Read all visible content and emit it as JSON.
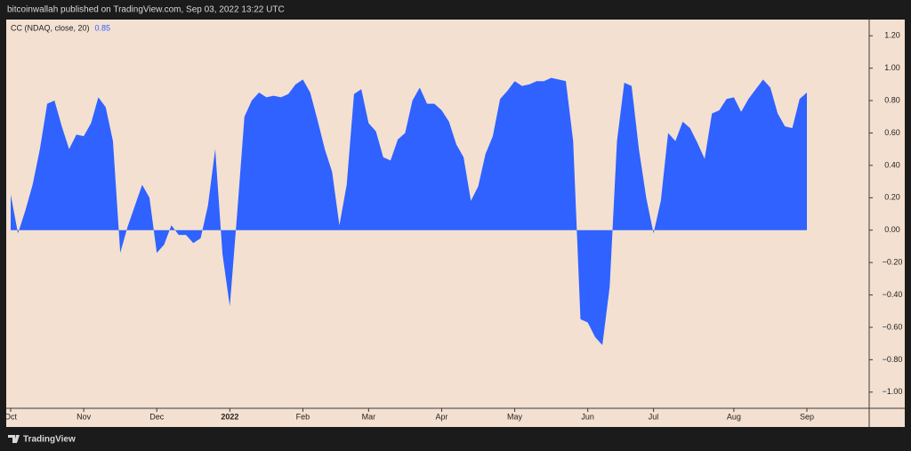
{
  "header": {
    "text": "bitcoinwallah published on TradingView.com, Sep 03, 2022 13:22 UTC"
  },
  "footer": {
    "brand": "TradingView"
  },
  "chart_data": {
    "type": "area",
    "series": [
      {
        "name": "CC (NDAQ, close, 20)",
        "color": "#2f62ff",
        "values": [
          0.22,
          -0.02,
          0.12,
          0.28,
          0.5,
          0.78,
          0.8,
          0.64,
          0.5,
          0.59,
          0.58,
          0.66,
          0.82,
          0.76,
          0.55,
          -0.14,
          0.02,
          0.15,
          0.28,
          0.2,
          -0.14,
          -0.09,
          0.03,
          -0.03,
          -0.03,
          -0.08,
          -0.05,
          0.15,
          0.5,
          -0.15,
          -0.47,
          0.1,
          0.7,
          0.8,
          0.85,
          0.82,
          0.83,
          0.82,
          0.84,
          0.9,
          0.93,
          0.85,
          0.68,
          0.5,
          0.36,
          0.03,
          0.28,
          0.84,
          0.87,
          0.66,
          0.61,
          0.45,
          0.43,
          0.56,
          0.6,
          0.8,
          0.88,
          0.78,
          0.78,
          0.74,
          0.67,
          0.53,
          0.45,
          0.18,
          0.27,
          0.47,
          0.58,
          0.81,
          0.86,
          0.92,
          0.89,
          0.9,
          0.92,
          0.92,
          0.94,
          0.93,
          0.92,
          0.55,
          -0.55,
          -0.57,
          -0.66,
          -0.71,
          -0.35,
          0.55,
          0.91,
          0.89,
          0.5,
          0.2,
          -0.02,
          0.18,
          0.6,
          0.55,
          0.67,
          0.63,
          0.54,
          0.44,
          0.72,
          0.74,
          0.81,
          0.82,
          0.73,
          0.81,
          0.87,
          0.93,
          0.88,
          0.72,
          0.64,
          0.63,
          0.81,
          0.85
        ]
      }
    ],
    "last_value": 0.85,
    "categories": [
      "Oct",
      null,
      null,
      null,
      null,
      null,
      null,
      null,
      null,
      null,
      "Nov",
      null,
      null,
      null,
      null,
      null,
      null,
      null,
      null,
      null,
      "Dec",
      null,
      null,
      null,
      null,
      null,
      null,
      null,
      null,
      null,
      "2022",
      null,
      null,
      null,
      null,
      null,
      null,
      null,
      null,
      null,
      "Feb",
      null,
      null,
      null,
      null,
      null,
      null,
      null,
      null,
      "Mar",
      null,
      null,
      null,
      null,
      null,
      null,
      null,
      null,
      null,
      "Apr",
      null,
      null,
      null,
      null,
      null,
      null,
      null,
      null,
      null,
      "May",
      null,
      null,
      null,
      null,
      null,
      null,
      null,
      null,
      null,
      "Jun",
      null,
      null,
      null,
      null,
      null,
      null,
      null,
      null,
      "Jul",
      null,
      null,
      null,
      null,
      null,
      null,
      null,
      null,
      null,
      null,
      "Aug",
      null,
      null,
      null,
      null,
      null,
      null,
      null,
      null,
      null,
      "Sep"
    ],
    "ylim": [
      -1.1,
      1.3
    ],
    "yticks": [
      {
        "value": 1.2,
        "label": "1.20"
      },
      {
        "value": 1,
        "label": "1.00"
      },
      {
        "value": 0.8,
        "label": "0.80"
      },
      {
        "value": 0.6,
        "label": "0.60"
      },
      {
        "value": 0.4,
        "label": "0.40"
      },
      {
        "value": 0.2,
        "label": "0.20"
      },
      {
        "value": 0,
        "label": "0.00"
      },
      {
        "value": -0.2,
        "label": "−0.20"
      },
      {
        "value": -0.4,
        "label": "−0.40"
      },
      {
        "value": -0.6,
        "label": "−0.60"
      },
      {
        "value": -0.8,
        "label": "−0.80"
      },
      {
        "value": -1,
        "label": "−1.00"
      }
    ],
    "axis_side": "right"
  }
}
